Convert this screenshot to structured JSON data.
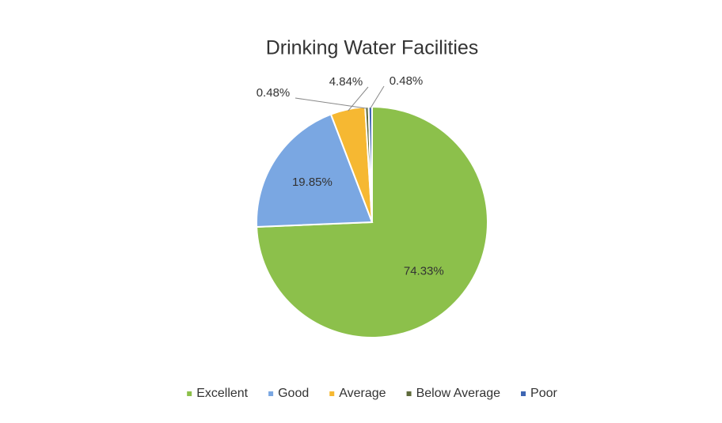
{
  "chart_data": {
    "type": "pie",
    "title": "Drinking Water Facilities",
    "categories": [
      "Excellent",
      "Good",
      "Average",
      "Below Average",
      "Poor"
    ],
    "values": [
      74.33,
      19.85,
      4.84,
      0.48,
      0.48
    ],
    "value_labels": [
      "74.33%",
      "19.85%",
      "4.84%",
      "0.48%",
      "0.48%"
    ],
    "colors": [
      "#8cc04b",
      "#7aa7e2",
      "#f6b832",
      "#5f6b3b",
      "#3e66b3"
    ],
    "legend": "bottom"
  }
}
